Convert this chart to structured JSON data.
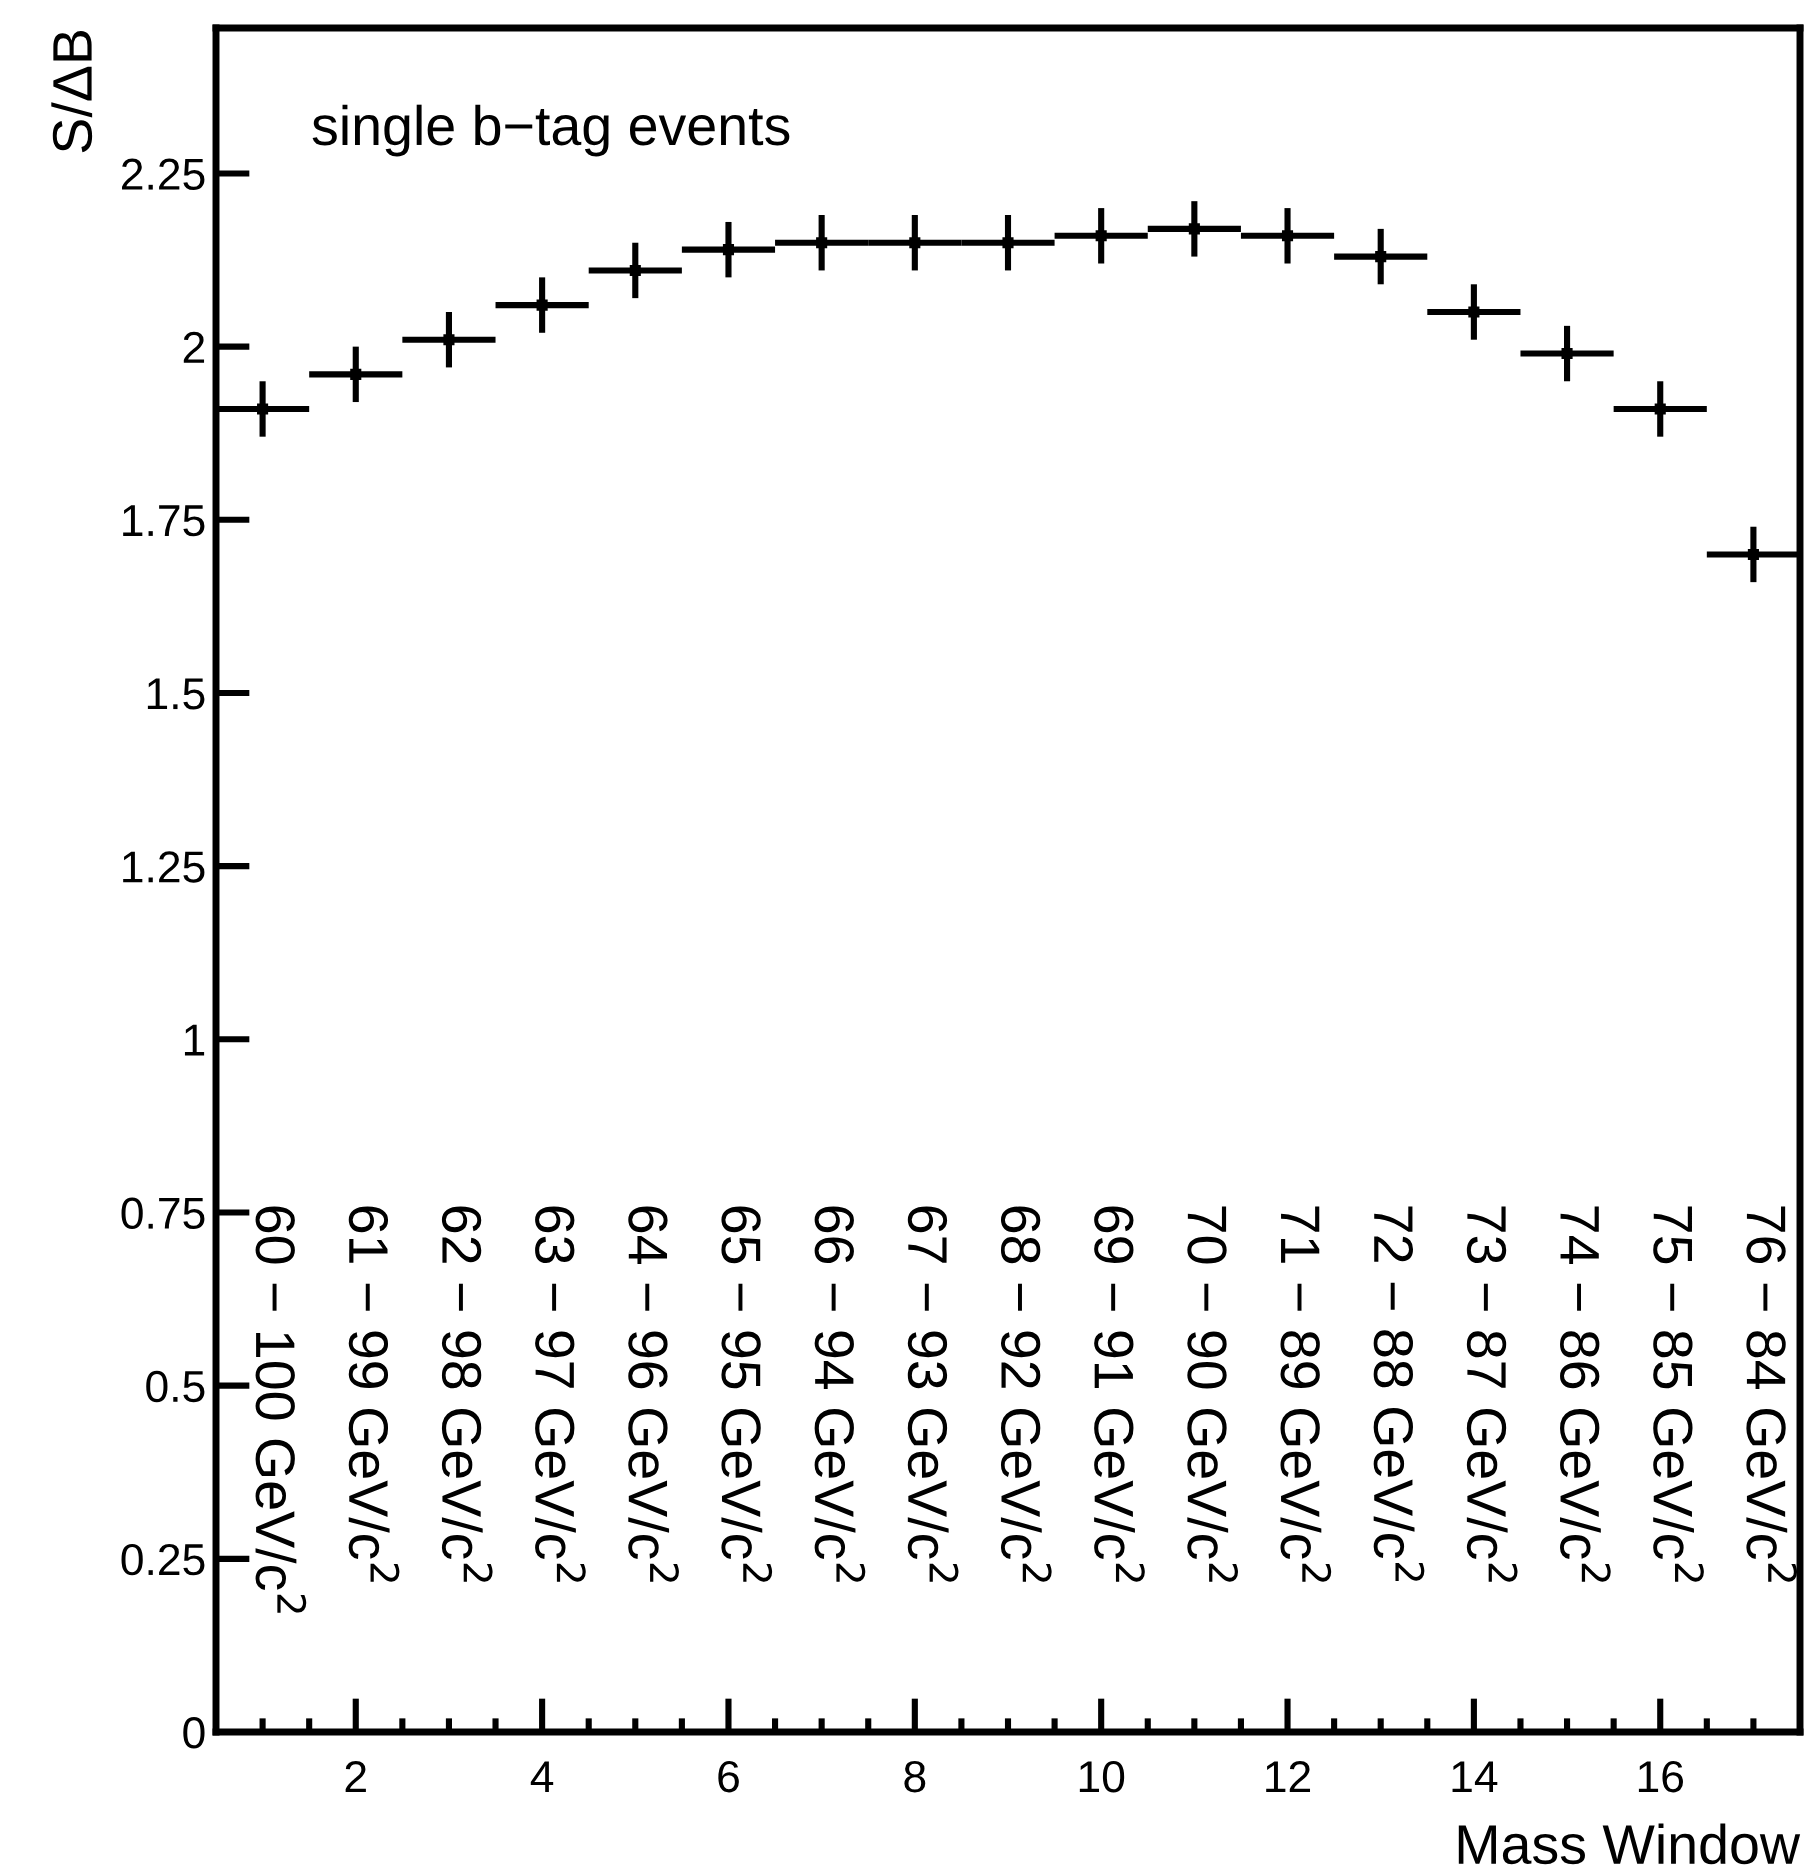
{
  "chart_data": {
    "type": "scatter",
    "ylabel": "S/ΔB",
    "xlabel": "Mass Window",
    "x": [
      1,
      2,
      3,
      4,
      5,
      6,
      7,
      8,
      9,
      10,
      11,
      12,
      13,
      14,
      15,
      16,
      17
    ],
    "values": [
      1.91,
      1.96,
      2.01,
      2.06,
      2.11,
      2.14,
      2.15,
      2.15,
      2.15,
      2.16,
      2.17,
      2.16,
      2.13,
      2.05,
      1.99,
      1.91,
      1.7
    ],
    "errors": [
      0.04,
      0.04,
      0.04,
      0.04,
      0.04,
      0.04,
      0.04,
      0.04,
      0.04,
      0.04,
      0.04,
      0.04,
      0.04,
      0.04,
      0.04,
      0.04,
      0.04
    ],
    "xerrors": [
      0.5,
      0.5,
      0.5,
      0.5,
      0.5,
      0.5,
      0.5,
      0.5,
      0.5,
      0.5,
      0.5,
      0.5,
      0.5,
      0.5,
      0.5,
      0.5,
      0.5
    ],
    "color": "#000000",
    "xlim": [
      0.5,
      17.5
    ],
    "ylim": [
      0,
      2.46
    ],
    "xticks": [
      2,
      4,
      6,
      8,
      10,
      12,
      14,
      16
    ],
    "yticks": [
      0,
      0.25,
      0.5,
      0.75,
      1,
      1.25,
      1.5,
      1.75,
      2,
      2.25
    ],
    "annotations": [
      "single b−tag events",
      "60 − 100 GeV/c$^{2}$",
      "61 − 99 GeV/c$^{2}$",
      "62 − 98 GeV/c$^{2}$",
      "63 − 97 GeV/c$^{2}$",
      "64 − 96 GeV/c$^{2}$",
      "65 − 95 GeV/c$^{2}$",
      "66 − 94 GeV/c$^{2}$",
      "67 − 93 GeV/c$^{2}$",
      "68 − 92 GeV/c$^{2}$",
      "69 − 91 GeV/c$^{2}$",
      "70 − 90 GeV/c$^{2}$",
      "71 − 89 GeV/c$^{2}$",
      "72 − 88 GeV/c$^{2}$",
      "73 − 87 GeV/c$^{2}$",
      "74 − 86 GeV/c$^{2}$",
      "75 − 85 GeV/c$^{2}$",
      "76 − 84 GeV/c$^{2}$"
    ]
  }
}
